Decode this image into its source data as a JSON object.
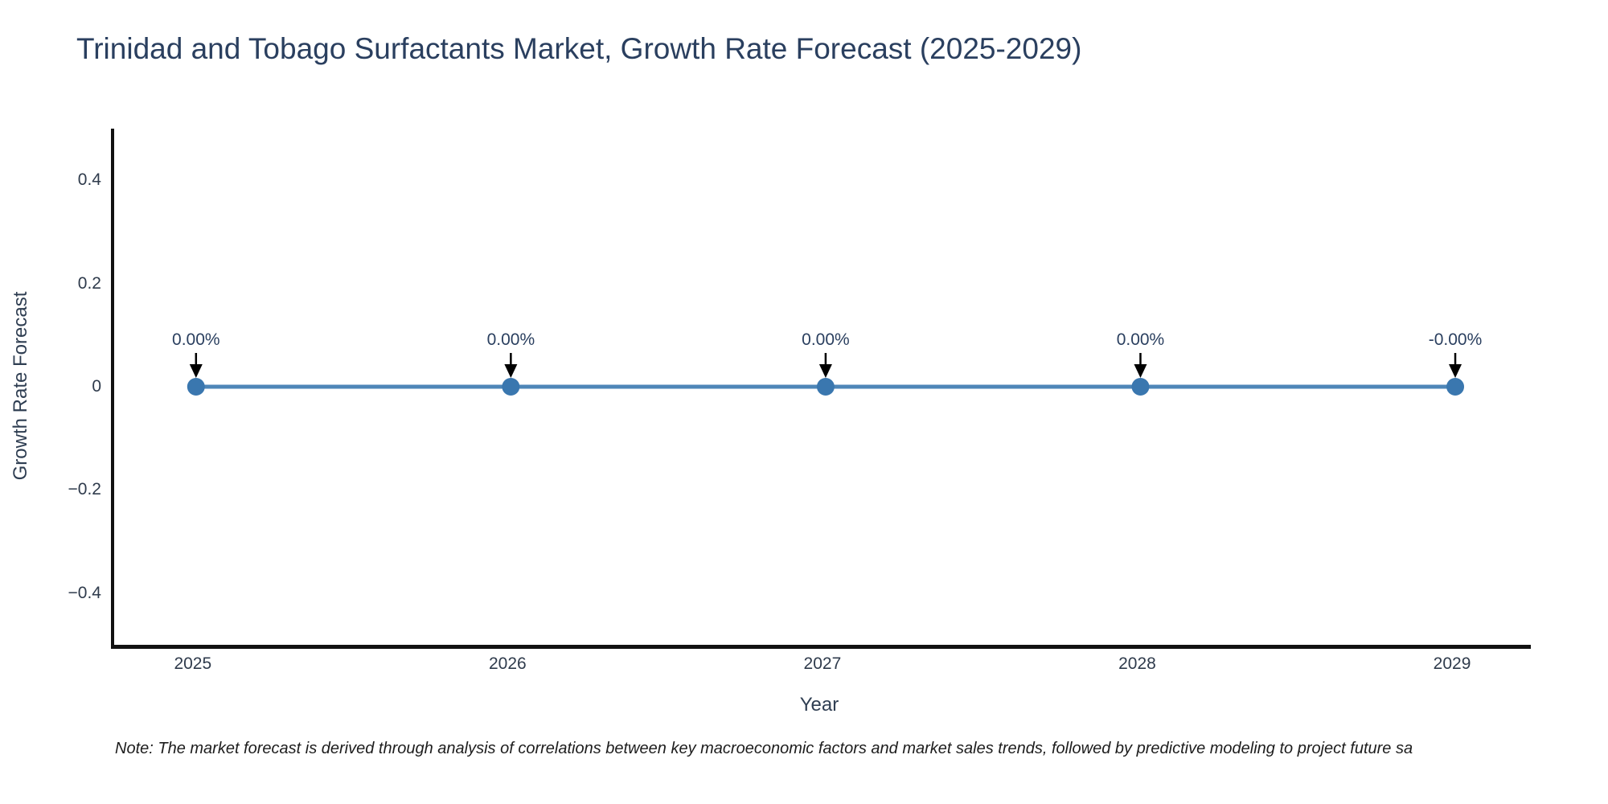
{
  "title": "Trinidad and Tobago Surfactants Market, Growth Rate Forecast (2025-2029)",
  "note": "Note: The market forecast is derived through analysis of correlations between key macroeconomic factors and market sales trends, followed by predictive modeling to project future sa",
  "colors": {
    "title": "#2a3f5f",
    "tick_label": "#2f3b4c",
    "axis_line": "#111111",
    "line": "#4e86b8",
    "marker": "#3a77af",
    "annotation_text": "#2a3f5f",
    "annotation_arrow": "#000000",
    "background": "#ffffff"
  },
  "chart_data": {
    "type": "line",
    "title": "Trinidad and Tobago Surfactants Market, Growth Rate Forecast (2025-2029)",
    "xlabel": "Year",
    "ylabel": "Growth Rate Forecast",
    "x": [
      2025,
      2026,
      2027,
      2028,
      2029
    ],
    "categories": [
      "2025",
      "2026",
      "2027",
      "2028",
      "2029"
    ],
    "series": [
      {
        "name": "Growth Rate Forecast",
        "values": [
          0,
          0,
          0,
          0,
          0
        ]
      }
    ],
    "point_labels": [
      "0.00%",
      "0.00%",
      "0.00%",
      "0.00%",
      "-0.00%"
    ],
    "xlim": [
      2024.74,
      2029.24
    ],
    "ylim": [
      -0.5,
      0.5
    ],
    "yticks": [
      0.4,
      0.2,
      0,
      -0.2,
      -0.4
    ],
    "ytick_labels": [
      "0.4",
      "0.2",
      "0",
      "−0.2",
      "−0.4"
    ],
    "xtick_labels": [
      "2025",
      "2026",
      "2027",
      "2028",
      "2029"
    ],
    "grid": false,
    "legend": "none",
    "annotation_style": "down-arrow-to-point"
  }
}
